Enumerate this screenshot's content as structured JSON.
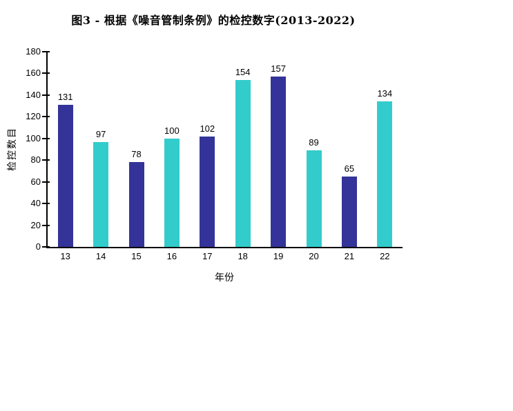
{
  "chart_data": {
    "type": "bar",
    "title": "图3 - 根据《噪音管制条例》的检控数字(2013-2022)",
    "xlabel": "年份",
    "ylabel": "检控数目",
    "categories": [
      "13",
      "14",
      "15",
      "16",
      "17",
      "18",
      "19",
      "20",
      "21",
      "22"
    ],
    "values": [
      131,
      97,
      78,
      100,
      102,
      154,
      157,
      89,
      65,
      134
    ],
    "ylim": [
      0,
      180
    ],
    "ytick_step": 20,
    "grid": false,
    "legend_position": "none",
    "bar_colors_alternating": [
      "#333399",
      "#33CCCC"
    ],
    "axis_color": "#000000",
    "text_color": "#000000",
    "background_color": "#FFFFFF"
  }
}
